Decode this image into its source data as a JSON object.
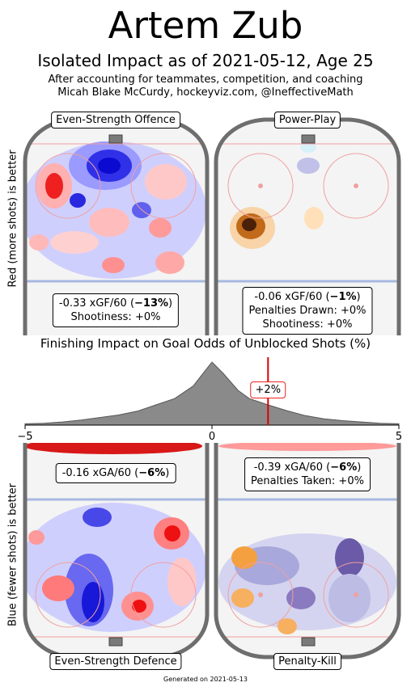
{
  "header": {
    "title": "Artem Zub",
    "subtitle": "Isolated Impact as of 2021-05-12, Age 25",
    "line1": "After accounting for teammates, competition, and coaching",
    "line2": "Micah Blake McCurdy, hockeyviz.com, @IneffectiveMath"
  },
  "panels": {
    "ev_off": {
      "label": "Even-Strength Offence",
      "stat_pre": "-0.33 xGF/60 (",
      "stat_bold": "−13%",
      "stat_post": ")",
      "line2": "Shootiness: +0%"
    },
    "pp": {
      "label": "Power-Play",
      "stat_pre": "-0.06 xGF/60 (",
      "stat_bold": "−1%",
      "stat_post": ")",
      "line2": "Penalties Drawn: +0%",
      "line3": "Shootiness: +0%"
    },
    "ev_def": {
      "label": "Even-Strength Defence",
      "stat_pre": "-0.16 xGA/60 (",
      "stat_bold": "−6%",
      "stat_post": ")"
    },
    "pk": {
      "label": "Penalty-Kill",
      "stat_pre": "-0.39 xGA/60 (",
      "stat_bold": "−6%",
      "stat_post": ")",
      "line2": "Penalties Taken: +0%"
    }
  },
  "side_labels": {
    "top": "Red (more shots) is better",
    "bottom": "Blue (fewer shots) is better"
  },
  "finishing": {
    "title": "Finishing Impact on Goal Odds of Unblocked Shots (%)",
    "marker_label": "+2%"
  },
  "colors": {
    "red": "#ee1111",
    "blue": "#1111ee",
    "orange": "#e08a1e",
    "purple": "#6a5aa8",
    "rink": "#6e6e6e"
  },
  "chart_data": {
    "type": "area",
    "title": "Finishing Impact on Goal Odds of Unblocked Shots (%)",
    "xlim": [
      -5,
      5
    ],
    "x_ticks": [
      -5,
      0,
      5
    ],
    "x_tick_labels": [
      "−5",
      "0",
      "5"
    ],
    "marker_value": 1.5,
    "distribution": {
      "x": [
        -5,
        -4.5,
        -4,
        -3.5,
        -3,
        -2.5,
        -2,
        -1.5,
        -1,
        -0.5,
        -0.2,
        0,
        0.3,
        0.7,
        1,
        1.5,
        2,
        2.5,
        3,
        3.5,
        4,
        4.5,
        5
      ],
      "y": [
        0.02,
        0.03,
        0.05,
        0.08,
        0.12,
        0.16,
        0.22,
        0.32,
        0.42,
        0.62,
        0.85,
        1.0,
        0.82,
        0.55,
        0.42,
        0.32,
        0.23,
        0.15,
        0.1,
        0.07,
        0.05,
        0.03,
        0.02
      ]
    }
  },
  "footer": "Generated on 2021-05-13"
}
